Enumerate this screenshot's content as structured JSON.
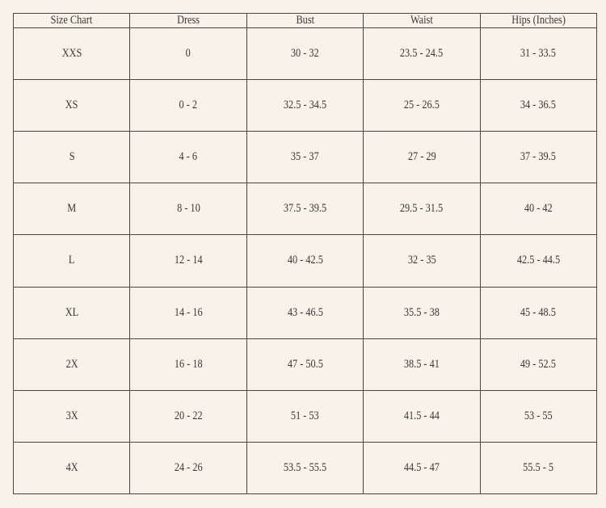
{
  "table": {
    "headers": [
      "Size Chart",
      "Dress",
      "Bust",
      "Waist",
      "Hips (Inches)"
    ],
    "rows": [
      [
        "XXS",
        "0",
        "30 - 32",
        "23.5 - 24.5",
        "31 - 33.5"
      ],
      [
        "XS",
        "0 - 2",
        "32.5 - 34.5",
        "25 - 26.5",
        "34 - 36.5"
      ],
      [
        "S",
        "4 - 6",
        "35 - 37",
        "27 - 29",
        "37 - 39.5"
      ],
      [
        "M",
        "8 - 10",
        "37.5 - 39.5",
        "29.5 - 31.5",
        "40 - 42"
      ],
      [
        "L",
        "12 - 14",
        "40 - 42.5",
        "32 - 35",
        "42.5 - 44.5"
      ],
      [
        "XL",
        "14 - 16",
        "43 - 46.5",
        "35.5 - 38",
        "45 - 48.5"
      ],
      [
        "2X",
        "16 - 18",
        "47 - 50.5",
        "38.5 - 41",
        "49 - 52.5"
      ],
      [
        "3X",
        "20 - 22",
        "51 - 53",
        "41.5 - 44",
        "53 - 55"
      ],
      [
        "4X",
        "24 - 26",
        "53.5 - 55.5",
        "44.5 - 47",
        "55.5 - 5"
      ]
    ]
  }
}
